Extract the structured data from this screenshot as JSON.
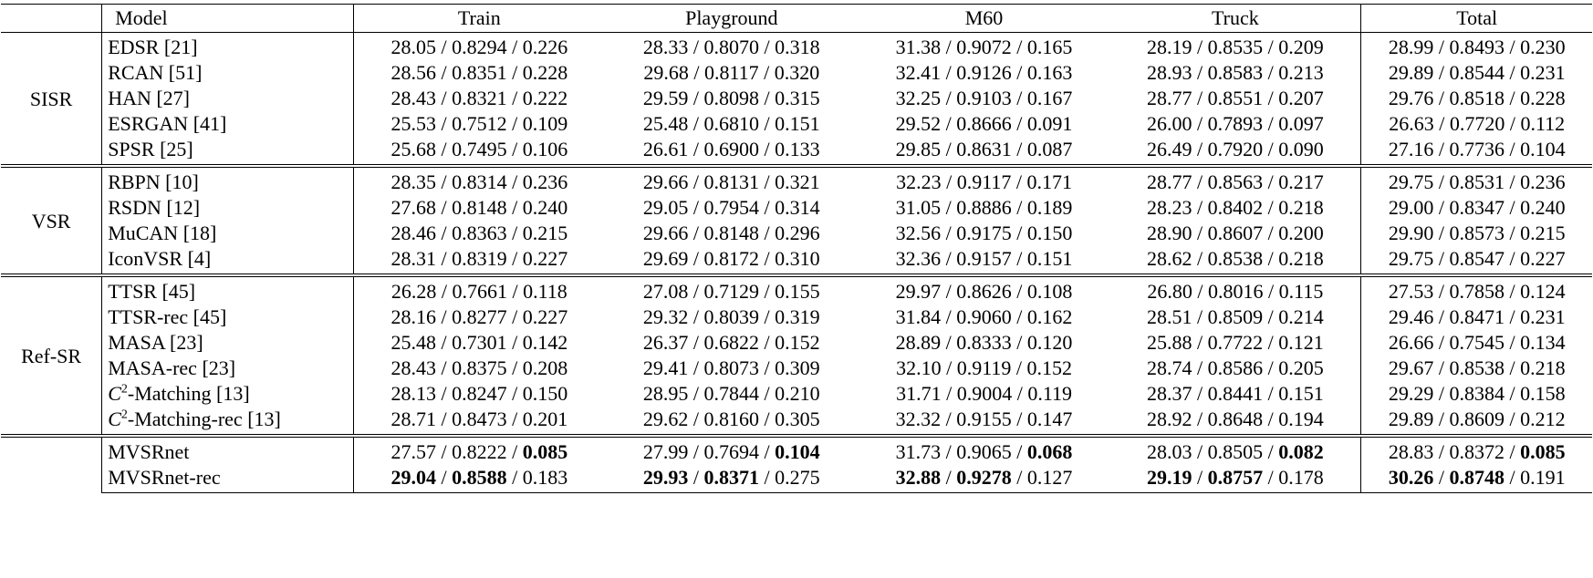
{
  "header": {
    "model": "Model",
    "columns": [
      "Train",
      "Playground",
      "M60",
      "Truck",
      "Total"
    ]
  },
  "separator": " / ",
  "groups": [
    {
      "name": "SISR",
      "rows": [
        {
          "model": "EDSR [21]",
          "cells": [
            [
              "28.05",
              "0.8294",
              "0.226"
            ],
            [
              "28.33",
              "0.8070",
              "0.318"
            ],
            [
              "31.38",
              "0.9072",
              "0.165"
            ],
            [
              "28.19",
              "0.8535",
              "0.209"
            ],
            [
              "28.99",
              "0.8493",
              "0.230"
            ]
          ]
        },
        {
          "model": "RCAN [51]",
          "cells": [
            [
              "28.56",
              "0.8351",
              "0.228"
            ],
            [
              "29.68",
              "0.8117",
              "0.320"
            ],
            [
              "32.41",
              "0.9126",
              "0.163"
            ],
            [
              "28.93",
              "0.8583",
              "0.213"
            ],
            [
              "29.89",
              "0.8544",
              "0.231"
            ]
          ]
        },
        {
          "model": "HAN [27]",
          "cells": [
            [
              "28.43",
              "0.8321",
              "0.222"
            ],
            [
              "29.59",
              "0.8098",
              "0.315"
            ],
            [
              "32.25",
              "0.9103",
              "0.167"
            ],
            [
              "28.77",
              "0.8551",
              "0.207"
            ],
            [
              "29.76",
              "0.8518",
              "0.228"
            ]
          ]
        },
        {
          "model": "ESRGAN [41]",
          "cells": [
            [
              "25.53",
              "0.7512",
              "0.109"
            ],
            [
              "25.48",
              "0.6810",
              "0.151"
            ],
            [
              "29.52",
              "0.8666",
              "0.091"
            ],
            [
              "26.00",
              "0.7893",
              "0.097"
            ],
            [
              "26.63",
              "0.7720",
              "0.112"
            ]
          ]
        },
        {
          "model": "SPSR [25]",
          "cells": [
            [
              "25.68",
              "0.7495",
              "0.106"
            ],
            [
              "26.61",
              "0.6900",
              "0.133"
            ],
            [
              "29.85",
              "0.8631",
              "0.087"
            ],
            [
              "26.49",
              "0.7920",
              "0.090"
            ],
            [
              "27.16",
              "0.7736",
              "0.104"
            ]
          ]
        }
      ]
    },
    {
      "name": "VSR",
      "rows": [
        {
          "model": "RBPN [10]",
          "cells": [
            [
              "28.35",
              "0.8314",
              "0.236"
            ],
            [
              "29.66",
              "0.8131",
              "0.321"
            ],
            [
              "32.23",
              "0.9117",
              "0.171"
            ],
            [
              "28.77",
              "0.8563",
              "0.217"
            ],
            [
              "29.75",
              "0.8531",
              "0.236"
            ]
          ]
        },
        {
          "model": "RSDN [12]",
          "cells": [
            [
              "27.68",
              "0.8148",
              "0.240"
            ],
            [
              "29.05",
              "0.7954",
              "0.314"
            ],
            [
              "31.05",
              "0.8886",
              "0.189"
            ],
            [
              "28.23",
              "0.8402",
              "0.218"
            ],
            [
              "29.00",
              "0.8347",
              "0.240"
            ]
          ]
        },
        {
          "model": "MuCAN [18]",
          "cells": [
            [
              "28.46",
              "0.8363",
              "0.215"
            ],
            [
              "29.66",
              "0.8148",
              "0.296"
            ],
            [
              "32.56",
              "0.9175",
              "0.150"
            ],
            [
              "28.90",
              "0.8607",
              "0.200"
            ],
            [
              "29.90",
              "0.8573",
              "0.215"
            ]
          ]
        },
        {
          "model": "IconVSR [4]",
          "cells": [
            [
              "28.31",
              "0.8319",
              "0.227"
            ],
            [
              "29.69",
              "0.8172",
              "0.310"
            ],
            [
              "32.36",
              "0.9157",
              "0.151"
            ],
            [
              "28.62",
              "0.8538",
              "0.218"
            ],
            [
              "29.75",
              "0.8547",
              "0.227"
            ]
          ]
        }
      ]
    },
    {
      "name": "Ref-SR",
      "rows": [
        {
          "model": "TTSR [45]",
          "cells": [
            [
              "26.28",
              "0.7661",
              "0.118"
            ],
            [
              "27.08",
              "0.7129",
              "0.155"
            ],
            [
              "29.97",
              "0.8626",
              "0.108"
            ],
            [
              "26.80",
              "0.8016",
              "0.115"
            ],
            [
              "27.53",
              "0.7858",
              "0.124"
            ]
          ]
        },
        {
          "model": "TTSR-rec [45]",
          "cells": [
            [
              "28.16",
              "0.8277",
              "0.227"
            ],
            [
              "29.32",
              "0.8039",
              "0.319"
            ],
            [
              "31.84",
              "0.9060",
              "0.162"
            ],
            [
              "28.51",
              "0.8509",
              "0.214"
            ],
            [
              "29.46",
              "0.8471",
              "0.231"
            ]
          ]
        },
        {
          "model": "MASA [23]",
          "cells": [
            [
              "25.48",
              "0.7301",
              "0.142"
            ],
            [
              "26.37",
              "0.6822",
              "0.152"
            ],
            [
              "28.89",
              "0.8333",
              "0.120"
            ],
            [
              "25.88",
              "0.7722",
              "0.121"
            ],
            [
              "26.66",
              "0.7545",
              "0.134"
            ]
          ]
        },
        {
          "model": "MASA-rec [23]",
          "cells": [
            [
              "28.43",
              "0.8375",
              "0.208"
            ],
            [
              "29.41",
              "0.8073",
              "0.309"
            ],
            [
              "32.10",
              "0.9119",
              "0.152"
            ],
            [
              "28.74",
              "0.8586",
              "0.205"
            ],
            [
              "29.67",
              "0.8538",
              "0.218"
            ]
          ]
        },
        {
          "model_prefix": "C",
          "model_sup": "2",
          "model": "-Matching [13]",
          "cells": [
            [
              "28.13",
              "0.8247",
              "0.150"
            ],
            [
              "28.95",
              "0.7844",
              "0.210"
            ],
            [
              "31.71",
              "0.9004",
              "0.119"
            ],
            [
              "28.37",
              "0.8441",
              "0.151"
            ],
            [
              "29.29",
              "0.8384",
              "0.158"
            ]
          ]
        },
        {
          "model_prefix": "C",
          "model_sup": "2",
          "model": "-Matching-rec [13]",
          "cells": [
            [
              "28.71",
              "0.8473",
              "0.201"
            ],
            [
              "29.62",
              "0.8160",
              "0.305"
            ],
            [
              "32.32",
              "0.9155",
              "0.147"
            ],
            [
              "28.92",
              "0.8648",
              "0.194"
            ],
            [
              "29.89",
              "0.8609",
              "0.212"
            ]
          ]
        }
      ]
    },
    {
      "name": "",
      "rows": [
        {
          "model": "MVSRnet",
          "cells": [
            [
              "27.57",
              "0.8222",
              "0.085"
            ],
            [
              "27.99",
              "0.7694",
              "0.104"
            ],
            [
              "31.73",
              "0.9065",
              "0.068"
            ],
            [
              "28.03",
              "0.8505",
              "0.082"
            ],
            [
              "28.83",
              "0.8372",
              "0.085"
            ]
          ],
          "bold": [
            2
          ]
        },
        {
          "model": "MVSRnet-rec",
          "cells": [
            [
              "29.04",
              "0.8588",
              "0.183"
            ],
            [
              "29.93",
              "0.8371",
              "0.275"
            ],
            [
              "32.88",
              "0.9278",
              "0.127"
            ],
            [
              "29.19",
              "0.8757",
              "0.178"
            ],
            [
              "30.26",
              "0.8748",
              "0.191"
            ]
          ],
          "bold": [
            0,
            1
          ]
        }
      ]
    }
  ]
}
